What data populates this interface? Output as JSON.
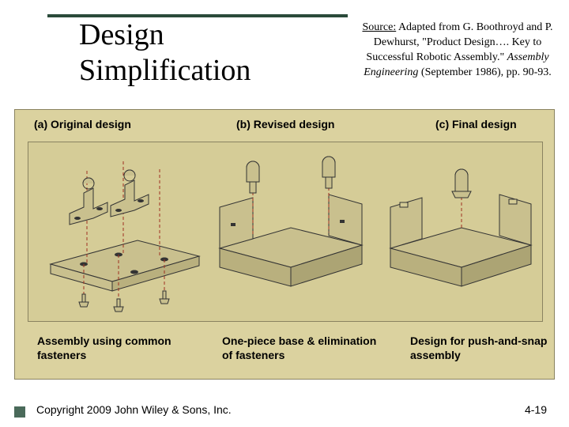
{
  "title_line1": "Design",
  "title_line2": "Simplification",
  "source_html": "<span class='u'>Source:</span> Adapted from G. Boothroyd and P. Dewhurst, \"Product Design…. Key to Successful Robotic Assembly.\" <span class='i'>Assembly Engineering</span> (September 1986), pp. 90-93.",
  "columns": {
    "a": {
      "label": "(a) Original design",
      "desc": "Assembly using common fasteners"
    },
    "b": {
      "label": "(b) Revised design",
      "desc": "One-piece base & elimination of fasteners"
    },
    "c": {
      "label": "(c) Final design",
      "desc": "Design for push-and-snap assembly"
    }
  },
  "copyright": "Copyright 2009 John Wiley & Sons, Inc.",
  "pagenum": "4-19",
  "colors": {
    "panel_bg": "#dbd29f",
    "panel_inner_bg": "#d5cc97",
    "panel_border": "#8a8360",
    "top_border": "#2a4a3a",
    "part_fill": "#c9c08e",
    "part_stroke": "#333333",
    "assembly_line": "#a03020"
  },
  "diagram": {
    "type": "exploded-assembly-illustration",
    "panels": [
      "original",
      "revised",
      "final"
    ],
    "part_fill": "#c9c08e",
    "part_stroke": "#333333",
    "dash": "4,3",
    "assembly_line_color": "#a03020"
  }
}
